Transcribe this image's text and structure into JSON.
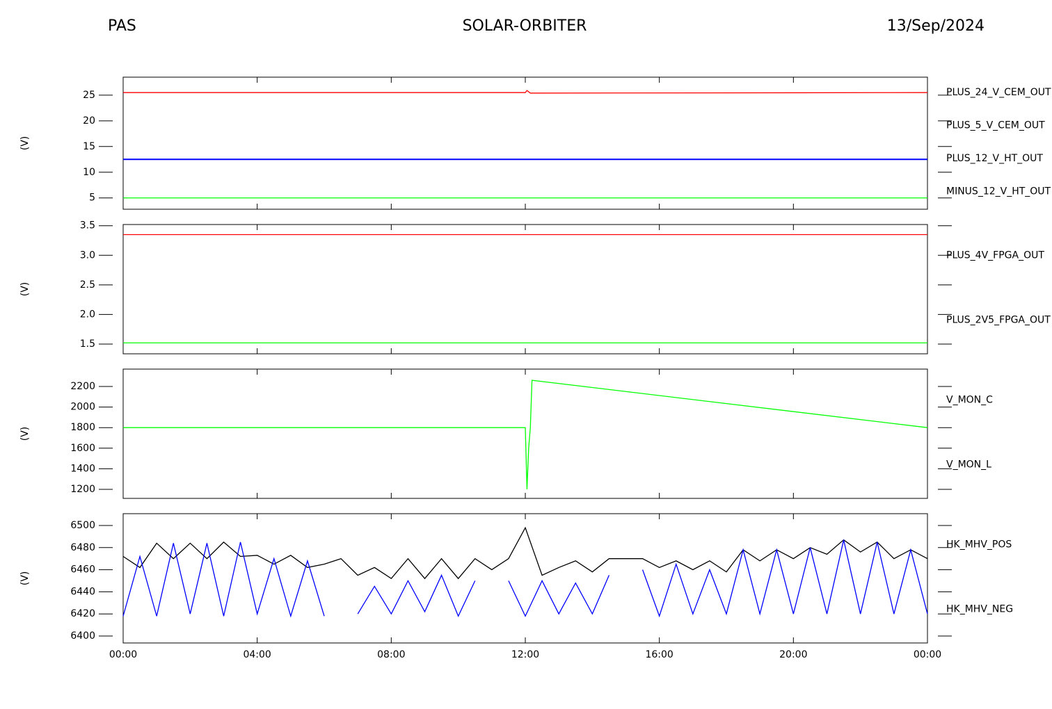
{
  "header": {
    "left": "PAS",
    "center": "SOLAR-ORBITER",
    "right": "13/Sep/2024"
  },
  "chart_data": [
    {
      "type": "line",
      "y_label": "(V)",
      "xlim": [
        0,
        24
      ],
      "x": [
        0,
        12,
        12.05,
        12.15,
        24
      ],
      "ylim": [
        2.8,
        28.5
      ],
      "yticks": [
        5,
        10,
        15,
        20,
        25
      ],
      "series": [
        {
          "name": "PLUS_24_V_CEM_OUT",
          "color": "#ff0000",
          "values": [
            25.5,
            25.5,
            25.9,
            25.4,
            25.5
          ]
        },
        {
          "name": "PLUS_5_V_CEM_OUT",
          "color": "#00ff00",
          "values": [
            5.0,
            5.0,
            5.0,
            5.0,
            5.0
          ]
        },
        {
          "name": "PLUS_12_V_HT_OUT",
          "color": "#0000ff",
          "values": [
            12.5,
            12.5,
            12.5,
            12.5,
            12.5
          ]
        },
        {
          "name": "MINUS_12_V_HT_OUT",
          "color": "#000000",
          "values": [
            12.5,
            12.5,
            12.5,
            12.5,
            12.5
          ]
        }
      ]
    },
    {
      "type": "line",
      "y_label": "(V)",
      "xlim": [
        0,
        24
      ],
      "x": [
        0,
        24
      ],
      "ylim": [
        1.335,
        3.52
      ],
      "yticks": [
        1.5,
        {
          "value": 2,
          "label": "2.0"
        },
        2.5,
        {
          "value": 3,
          "label": "3.0"
        },
        3.5
      ],
      "series": [
        {
          "name": "PLUS_4V_FPGA_OUT",
          "color": "#ff0000",
          "values": [
            3.35,
            3.35
          ]
        },
        {
          "name": "PLUS_2V5_FPGA_OUT",
          "color": "#00ff00",
          "values": [
            1.52,
            1.52
          ]
        }
      ]
    },
    {
      "type": "line",
      "y_label": "(V)",
      "xlim": [
        0,
        24
      ],
      "x": [
        0,
        12,
        12.05,
        12.1,
        12.15,
        12.2,
        24
      ],
      "ylim": [
        1112,
        2369
      ],
      "yticks": [
        1200,
        1400,
        1600,
        1800,
        2000,
        2200
      ],
      "series": [
        {
          "name": "V_MON_C",
          "color": "#ff0000",
          "values": [
            null,
            null,
            null,
            null,
            null,
            null,
            null
          ]
        },
        {
          "name": "V_MON_L",
          "color": "#00ff00",
          "values": [
            1800,
            1800,
            1200,
            1600,
            1800,
            2260,
            1800
          ]
        }
      ]
    },
    {
      "type": "line",
      "y_label": "(V)",
      "xlim": [
        0,
        24
      ],
      "x": [
        0,
        0.5,
        1,
        1.5,
        2,
        2.5,
        3,
        3.5,
        4,
        4.5,
        5,
        5.5,
        6,
        6.5,
        7,
        7.5,
        8,
        8.5,
        9,
        9.5,
        10,
        10.5,
        11,
        11.5,
        12,
        12.5,
        13,
        13.5,
        14,
        14.5,
        15,
        15.5,
        16,
        16.5,
        17,
        17.5,
        18,
        18.5,
        19,
        19.5,
        20,
        20.5,
        21,
        21.5,
        22,
        22.5,
        23,
        23.5,
        24
      ],
      "ylim": [
        6393.7,
        6510.7
      ],
      "yticks": [
        6400,
        6420,
        6440,
        6460,
        6480,
        6500
      ],
      "xticks": [
        {
          "value": 0,
          "label": "00:00"
        },
        {
          "value": 4,
          "label": "04:00"
        },
        {
          "value": 8,
          "label": "08:00"
        },
        {
          "value": 12,
          "label": "12:00"
        },
        {
          "value": 16,
          "label": "16:00"
        },
        {
          "value": 20,
          "label": "20:00"
        },
        {
          "value": 24,
          "label": "00:00"
        }
      ],
      "series": [
        {
          "name": "HK_MHV_POS",
          "color": "#000000",
          "values": [
            6472,
            6462,
            6484,
            6470,
            6484,
            6470,
            6485,
            6472,
            6473,
            6465,
            6473,
            6462,
            6465,
            6470,
            6455,
            6462,
            6452,
            6470,
            6452,
            6470,
            6452,
            6470,
            6460,
            6470,
            6498,
            6455,
            6462,
            6468,
            6458,
            6470,
            6470,
            6470,
            6462,
            6468,
            6460,
            6468,
            6458,
            6478,
            6468,
            6478,
            6470,
            6480,
            6474,
            6487,
            6476,
            6485,
            6470,
            6478,
            6470
          ]
        },
        {
          "name": "HK_MHV_NEG",
          "color": "#0000ff",
          "values": [
            6418,
            6472,
            6418,
            6484,
            6420,
            6484,
            6418,
            6485,
            6420,
            6470,
            6418,
            6468,
            6418,
            null,
            6420,
            6445,
            6420,
            6450,
            6422,
            6455,
            6418,
            6450,
            null,
            6450,
            6418,
            6450,
            6420,
            6448,
            6420,
            6455,
            null,
            6460,
            6418,
            6465,
            6420,
            6460,
            6420,
            6478,
            6420,
            6478,
            6420,
            6480,
            6420,
            6487,
            6420,
            6485,
            6420,
            6478,
            6420
          ]
        }
      ]
    }
  ]
}
